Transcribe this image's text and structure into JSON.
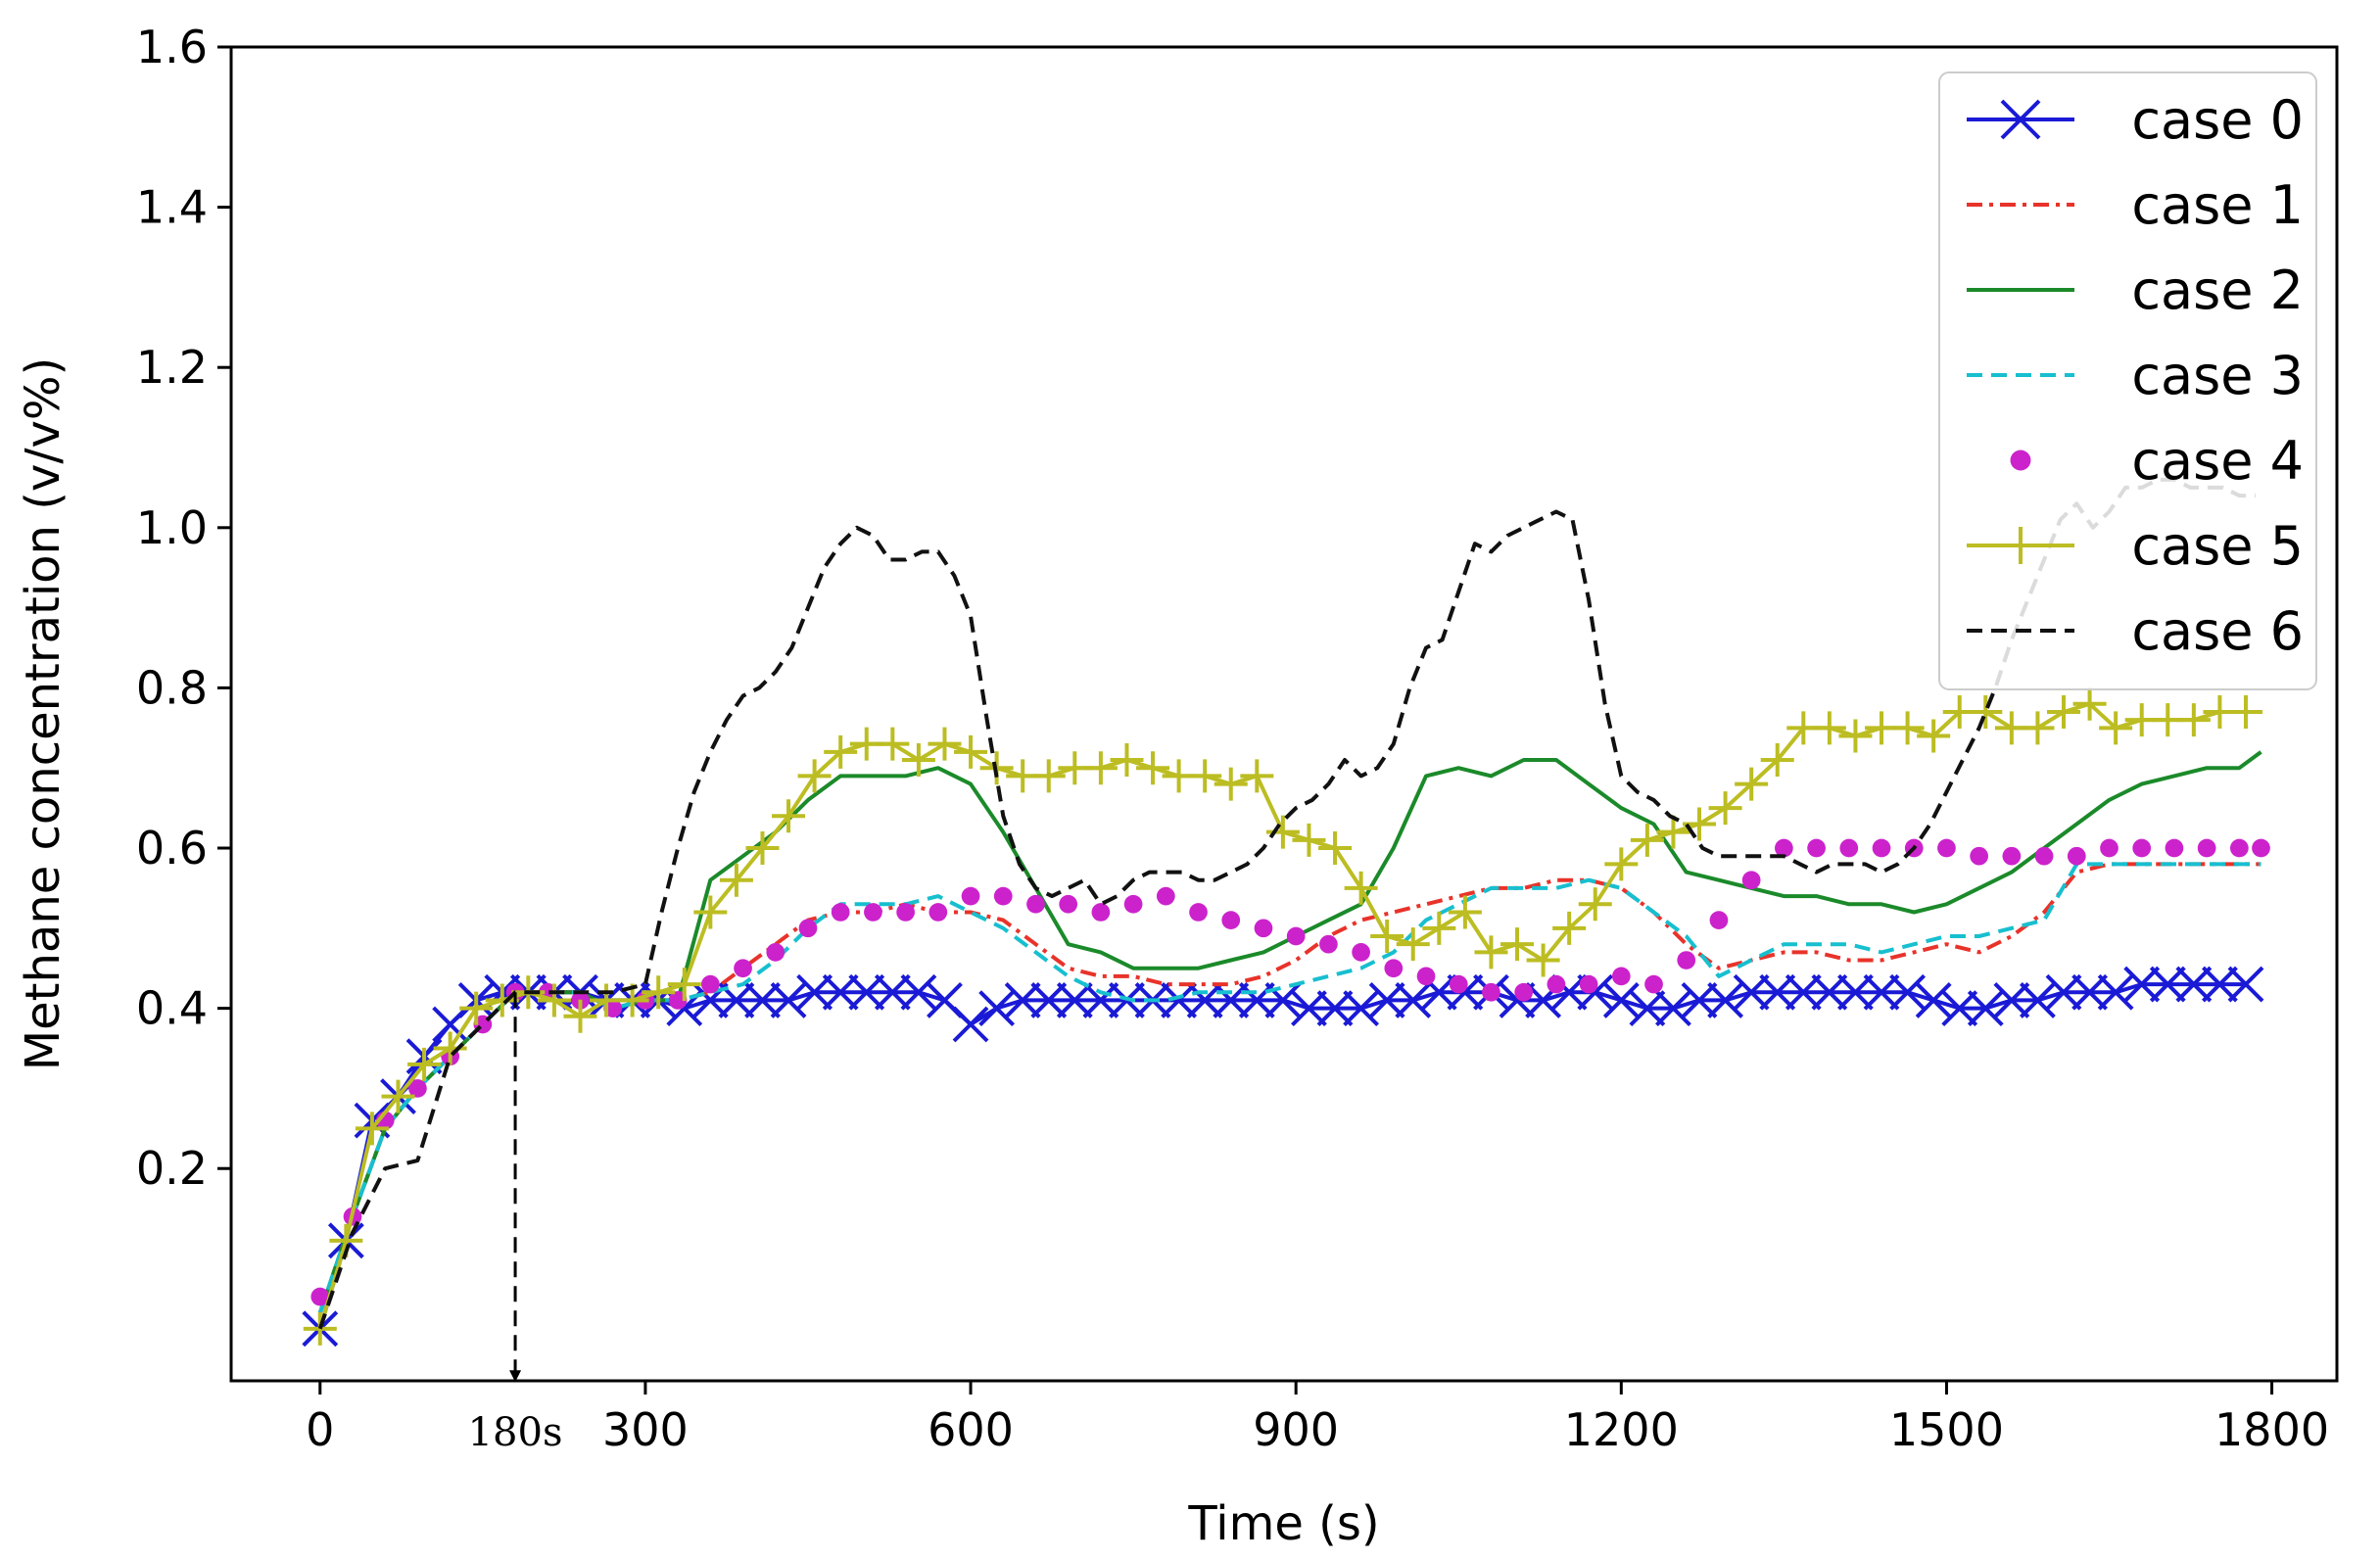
{
  "chart_data": {
    "type": "line",
    "title": "",
    "xlabel": "Time (s)",
    "ylabel": "Methane concentration (v/v%)",
    "xlim": [
      -82,
      1860
    ],
    "ylim": [
      -0.065,
      1.6
    ],
    "x_ticks": [
      0,
      300,
      600,
      900,
      1200,
      1500,
      1800
    ],
    "x_tick_labels": [
      "0",
      "300",
      "600",
      "900",
      "1200",
      "1500",
      "1800"
    ],
    "y_ticks": [
      0.2,
      0.4,
      0.6,
      0.8,
      1.0,
      1.2,
      1.4,
      1.6
    ],
    "y_tick_labels": [
      "0.2",
      "0.4",
      "0.6",
      "0.8",
      "1.0",
      "1.2",
      "1.4",
      "1.6"
    ],
    "grid": false,
    "legend_position": "top-right",
    "annotation": {
      "label": "180s",
      "x": 180,
      "y_from": 0.42,
      "y_to": -0.065,
      "style": "dashed arrow down"
    },
    "series": [
      {
        "name": "case 0",
        "color": "#1a1ad6",
        "style": "solid",
        "marker": "x",
        "x": [
          0,
          24,
          48,
          72,
          96,
          120,
          144,
          168,
          192,
          216,
          240,
          264,
          288,
          312,
          336,
          360,
          384,
          408,
          432,
          456,
          480,
          504,
          528,
          552,
          576,
          600,
          624,
          648,
          672,
          696,
          720,
          744,
          768,
          792,
          816,
          840,
          864,
          888,
          912,
          936,
          960,
          984,
          1008,
          1032,
          1056,
          1080,
          1104,
          1128,
          1152,
          1176,
          1200,
          1224,
          1248,
          1272,
          1296,
          1320,
          1344,
          1368,
          1392,
          1416,
          1440,
          1464,
          1488,
          1512,
          1536,
          1560,
          1584,
          1608,
          1632,
          1656,
          1680,
          1704,
          1728,
          1752,
          1776
        ],
        "y": [
          0.0,
          0.11,
          0.26,
          0.29,
          0.34,
          0.38,
          0.41,
          0.42,
          0.42,
          0.42,
          0.42,
          0.41,
          0.41,
          0.41,
          0.4,
          0.41,
          0.41,
          0.41,
          0.41,
          0.42,
          0.42,
          0.42,
          0.42,
          0.42,
          0.41,
          0.38,
          0.4,
          0.41,
          0.41,
          0.41,
          0.41,
          0.41,
          0.41,
          0.41,
          0.41,
          0.41,
          0.41,
          0.41,
          0.4,
          0.4,
          0.4,
          0.41,
          0.41,
          0.42,
          0.42,
          0.42,
          0.41,
          0.41,
          0.42,
          0.42,
          0.41,
          0.4,
          0.4,
          0.41,
          0.41,
          0.42,
          0.42,
          0.42,
          0.42,
          0.42,
          0.42,
          0.42,
          0.41,
          0.4,
          0.4,
          0.41,
          0.41,
          0.42,
          0.42,
          0.42,
          0.43,
          0.43,
          0.43,
          0.43,
          0.43
        ]
      },
      {
        "name": "case 1",
        "color": "#e8332a",
        "style": "dashdot",
        "marker": "none",
        "x": [
          0,
          30,
          60,
          90,
          120,
          150,
          180,
          210,
          240,
          270,
          300,
          330,
          360,
          390,
          420,
          450,
          480,
          510,
          540,
          570,
          600,
          630,
          660,
          690,
          720,
          750,
          780,
          810,
          840,
          870,
          900,
          930,
          960,
          990,
          1020,
          1050,
          1080,
          1110,
          1140,
          1170,
          1200,
          1230,
          1260,
          1290,
          1320,
          1350,
          1380,
          1410,
          1440,
          1470,
          1500,
          1530,
          1560,
          1590,
          1620,
          1650,
          1680,
          1710,
          1740,
          1770,
          1790
        ],
        "y": [
          0.02,
          0.14,
          0.25,
          0.3,
          0.34,
          0.38,
          0.42,
          0.42,
          0.42,
          0.4,
          0.41,
          0.41,
          0.42,
          0.45,
          0.48,
          0.51,
          0.52,
          0.52,
          0.53,
          0.52,
          0.52,
          0.51,
          0.48,
          0.45,
          0.44,
          0.44,
          0.43,
          0.43,
          0.43,
          0.44,
          0.46,
          0.49,
          0.51,
          0.52,
          0.53,
          0.54,
          0.55,
          0.55,
          0.56,
          0.56,
          0.55,
          0.52,
          0.48,
          0.45,
          0.46,
          0.47,
          0.47,
          0.46,
          0.46,
          0.47,
          0.48,
          0.47,
          0.49,
          0.52,
          0.57,
          0.58,
          0.58,
          0.58,
          0.58,
          0.58,
          0.58
        ]
      },
      {
        "name": "case 2",
        "color": "#1b8a2a",
        "style": "solid",
        "marker": "none",
        "x": [
          0,
          30,
          60,
          90,
          120,
          150,
          180,
          210,
          240,
          270,
          300,
          330,
          360,
          390,
          420,
          450,
          480,
          510,
          540,
          570,
          600,
          630,
          660,
          690,
          720,
          750,
          780,
          810,
          840,
          870,
          900,
          930,
          960,
          990,
          1020,
          1050,
          1080,
          1110,
          1140,
          1170,
          1200,
          1230,
          1260,
          1290,
          1320,
          1350,
          1380,
          1410,
          1440,
          1470,
          1500,
          1530,
          1560,
          1590,
          1620,
          1650,
          1680,
          1710,
          1740,
          1770,
          1790
        ],
        "y": [
          0.02,
          0.14,
          0.25,
          0.3,
          0.34,
          0.38,
          0.42,
          0.42,
          0.42,
          0.4,
          0.41,
          0.41,
          0.56,
          0.59,
          0.62,
          0.66,
          0.69,
          0.69,
          0.69,
          0.7,
          0.68,
          0.62,
          0.55,
          0.48,
          0.47,
          0.45,
          0.45,
          0.45,
          0.46,
          0.47,
          0.49,
          0.51,
          0.53,
          0.6,
          0.69,
          0.7,
          0.69,
          0.71,
          0.71,
          0.68,
          0.65,
          0.63,
          0.57,
          0.56,
          0.55,
          0.54,
          0.54,
          0.53,
          0.53,
          0.52,
          0.53,
          0.55,
          0.57,
          0.6,
          0.63,
          0.66,
          0.68,
          0.69,
          0.7,
          0.7,
          0.72
        ]
      },
      {
        "name": "case 3",
        "color": "#17bfcf",
        "style": "dashed",
        "marker": "none",
        "x": [
          0,
          30,
          60,
          90,
          120,
          150,
          180,
          210,
          240,
          270,
          300,
          330,
          360,
          390,
          420,
          450,
          480,
          510,
          540,
          570,
          600,
          630,
          660,
          690,
          720,
          750,
          780,
          810,
          840,
          870,
          900,
          930,
          960,
          990,
          1020,
          1050,
          1080,
          1110,
          1140,
          1170,
          1200,
          1230,
          1260,
          1290,
          1320,
          1350,
          1380,
          1410,
          1440,
          1470,
          1500,
          1530,
          1560,
          1590,
          1620,
          1650,
          1680,
          1710,
          1740,
          1770,
          1790
        ],
        "y": [
          0.02,
          0.14,
          0.25,
          0.3,
          0.34,
          0.38,
          0.42,
          0.42,
          0.42,
          0.4,
          0.41,
          0.41,
          0.42,
          0.43,
          0.46,
          0.5,
          0.53,
          0.53,
          0.53,
          0.54,
          0.52,
          0.5,
          0.47,
          0.44,
          0.42,
          0.41,
          0.41,
          0.42,
          0.42,
          0.42,
          0.43,
          0.44,
          0.45,
          0.47,
          0.51,
          0.53,
          0.55,
          0.55,
          0.55,
          0.56,
          0.55,
          0.52,
          0.49,
          0.44,
          0.46,
          0.48,
          0.48,
          0.48,
          0.47,
          0.48,
          0.49,
          0.49,
          0.5,
          0.51,
          0.58,
          0.58,
          0.58,
          0.58,
          0.58,
          0.58,
          0.58
        ]
      },
      {
        "name": "case 4",
        "color": "#cc22cc",
        "style": "none",
        "marker": "o",
        "x": [
          0,
          30,
          60,
          90,
          120,
          150,
          180,
          210,
          240,
          270,
          300,
          330,
          360,
          390,
          420,
          450,
          480,
          510,
          540,
          570,
          600,
          630,
          660,
          690,
          720,
          750,
          780,
          810,
          840,
          870,
          900,
          930,
          960,
          990,
          1020,
          1050,
          1080,
          1110,
          1140,
          1170,
          1200,
          1230,
          1260,
          1290,
          1320,
          1350,
          1380,
          1410,
          1440,
          1470,
          1500,
          1530,
          1560,
          1590,
          1620,
          1650,
          1680,
          1710,
          1740,
          1770,
          1790
        ],
        "y": [
          0.04,
          0.14,
          0.26,
          0.3,
          0.34,
          0.38,
          0.42,
          0.42,
          0.41,
          0.4,
          0.41,
          0.41,
          0.43,
          0.45,
          0.47,
          0.5,
          0.52,
          0.52,
          0.52,
          0.52,
          0.54,
          0.54,
          0.53,
          0.53,
          0.52,
          0.53,
          0.54,
          0.52,
          0.51,
          0.5,
          0.49,
          0.48,
          0.47,
          0.45,
          0.44,
          0.43,
          0.42,
          0.42,
          0.43,
          0.43,
          0.44,
          0.43,
          0.46,
          0.51,
          0.56,
          0.6,
          0.6,
          0.6,
          0.6,
          0.6,
          0.6,
          0.59,
          0.59,
          0.59,
          0.59,
          0.6,
          0.6,
          0.6,
          0.6,
          0.6,
          0.6
        ]
      },
      {
        "name": "case 5",
        "color": "#bcbd22",
        "style": "solid",
        "marker": "+",
        "x": [
          0,
          24,
          48,
          72,
          96,
          120,
          144,
          168,
          192,
          216,
          240,
          264,
          288,
          312,
          336,
          360,
          384,
          408,
          432,
          456,
          480,
          504,
          528,
          552,
          576,
          600,
          624,
          648,
          672,
          696,
          720,
          744,
          768,
          792,
          816,
          840,
          864,
          888,
          912,
          936,
          960,
          984,
          1008,
          1032,
          1056,
          1080,
          1104,
          1128,
          1152,
          1176,
          1200,
          1224,
          1248,
          1272,
          1296,
          1320,
          1344,
          1368,
          1392,
          1416,
          1440,
          1464,
          1488,
          1512,
          1536,
          1560,
          1584,
          1608,
          1632,
          1656,
          1680,
          1704,
          1728,
          1752,
          1776
        ],
        "y": [
          0.0,
          0.11,
          0.25,
          0.29,
          0.33,
          0.35,
          0.4,
          0.41,
          0.42,
          0.41,
          0.39,
          0.41,
          0.41,
          0.42,
          0.43,
          0.52,
          0.56,
          0.6,
          0.64,
          0.69,
          0.72,
          0.73,
          0.73,
          0.71,
          0.73,
          0.72,
          0.7,
          0.69,
          0.69,
          0.7,
          0.7,
          0.71,
          0.7,
          0.69,
          0.69,
          0.68,
          0.69,
          0.62,
          0.61,
          0.6,
          0.55,
          0.49,
          0.48,
          0.5,
          0.52,
          0.47,
          0.48,
          0.46,
          0.5,
          0.53,
          0.58,
          0.61,
          0.62,
          0.63,
          0.65,
          0.68,
          0.71,
          0.75,
          0.75,
          0.74,
          0.75,
          0.75,
          0.74,
          0.77,
          0.77,
          0.75,
          0.75,
          0.77,
          0.78,
          0.75,
          0.76,
          0.76,
          0.76,
          0.77,
          0.77
        ]
      },
      {
        "name": "case 6",
        "color": "#111111",
        "style": "dashed",
        "marker": "none",
        "x": [
          0,
          30,
          60,
          90,
          120,
          150,
          180,
          210,
          240,
          270,
          300,
          315,
          330,
          345,
          360,
          375,
          390,
          405,
          420,
          435,
          450,
          465,
          480,
          495,
          510,
          525,
          540,
          555,
          570,
          585,
          600,
          615,
          630,
          645,
          660,
          675,
          690,
          705,
          720,
          735,
          750,
          765,
          780,
          795,
          810,
          825,
          840,
          855,
          870,
          885,
          900,
          915,
          930,
          945,
          960,
          975,
          990,
          1005,
          1020,
          1035,
          1050,
          1065,
          1080,
          1095,
          1110,
          1125,
          1140,
          1155,
          1170,
          1185,
          1200,
          1215,
          1230,
          1245,
          1260,
          1275,
          1290,
          1305,
          1320,
          1335,
          1350,
          1365,
          1380,
          1395,
          1410,
          1425,
          1440,
          1455,
          1470,
          1485,
          1500,
          1515,
          1530,
          1545,
          1560,
          1575,
          1590,
          1605,
          1620,
          1635,
          1650,
          1665,
          1680,
          1695,
          1710,
          1725,
          1740,
          1755,
          1770,
          1785
        ],
        "y": [
          0.0,
          0.12,
          0.2,
          0.21,
          0.34,
          0.38,
          0.42,
          0.42,
          0.42,
          0.42,
          0.43,
          0.52,
          0.6,
          0.67,
          0.72,
          0.76,
          0.79,
          0.8,
          0.82,
          0.85,
          0.9,
          0.95,
          0.98,
          1.0,
          0.99,
          0.96,
          0.96,
          0.97,
          0.97,
          0.94,
          0.89,
          0.76,
          0.64,
          0.58,
          0.55,
          0.54,
          0.55,
          0.56,
          0.53,
          0.54,
          0.56,
          0.57,
          0.57,
          0.57,
          0.56,
          0.56,
          0.57,
          0.58,
          0.6,
          0.63,
          0.65,
          0.66,
          0.68,
          0.71,
          0.69,
          0.7,
          0.73,
          0.8,
          0.85,
          0.86,
          0.92,
          0.98,
          0.97,
          0.99,
          1.0,
          1.01,
          1.02,
          1.01,
          0.91,
          0.78,
          0.69,
          0.67,
          0.66,
          0.64,
          0.63,
          0.6,
          0.59,
          0.59,
          0.59,
          0.59,
          0.59,
          0.58,
          0.57,
          0.58,
          0.58,
          0.58,
          0.57,
          0.58,
          0.6,
          0.63,
          0.67,
          0.71,
          0.75,
          0.8,
          0.86,
          0.91,
          0.96,
          1.01,
          1.03,
          1.0,
          1.02,
          1.05,
          1.05,
          1.06,
          1.06,
          1.05,
          1.05,
          1.05,
          1.04,
          1.04
        ]
      }
    ]
  }
}
